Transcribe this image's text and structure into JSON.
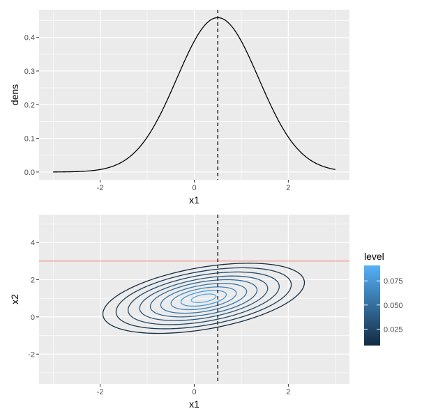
{
  "chart_data": [
    {
      "type": "line",
      "xlabel": "x1",
      "ylabel": "dens",
      "xlim": [
        -3.3,
        3.3
      ],
      "ylim": [
        -0.023,
        0.482
      ],
      "x_ticks": [
        -2,
        0,
        2
      ],
      "x_tick_labels": [
        "-2",
        "0",
        "2"
      ],
      "y_ticks": [
        0.0,
        0.1,
        0.2,
        0.3,
        0.4
      ],
      "y_tick_labels": [
        "0.0",
        "0.1",
        "0.2",
        "0.3",
        "0.4"
      ],
      "grid": true,
      "curve": {
        "mean": 0.5,
        "sd": 0.87,
        "x_range": [
          -3,
          3
        ]
      },
      "vline": {
        "x": 0.5,
        "style": "dashed",
        "color": "#000000"
      }
    },
    {
      "type": "contour",
      "xlabel": "x1",
      "ylabel": "x2",
      "xlim": [
        -3.3,
        3.3
      ],
      "ylim": [
        -3.6,
        5.5
      ],
      "x_ticks": [
        -2,
        0,
        2
      ],
      "x_tick_labels": [
        "-2",
        "0",
        "2"
      ],
      "y_ticks": [
        -2,
        0,
        2,
        4
      ],
      "y_tick_labels": [
        "-2",
        "0",
        "2",
        "4"
      ],
      "grid": true,
      "center": [
        0.2,
        1.0
      ],
      "contours": [
        {
          "a": 2.44,
          "b": 1.48,
          "angle_deg": 37,
          "level": 0.008
        },
        {
          "a": 2.12,
          "b": 1.29,
          "angle_deg": 37,
          "level": 0.017
        },
        {
          "a": 1.83,
          "b": 1.11,
          "angle_deg": 37,
          "level": 0.026
        },
        {
          "a": 1.55,
          "b": 0.94,
          "angle_deg": 37,
          "level": 0.035
        },
        {
          "a": 1.29,
          "b": 0.79,
          "angle_deg": 37,
          "level": 0.044
        },
        {
          "a": 1.04,
          "b": 0.63,
          "angle_deg": 37,
          "level": 0.054
        },
        {
          "a": 0.79,
          "b": 0.48,
          "angle_deg": 37,
          "level": 0.064
        },
        {
          "a": 0.55,
          "b": 0.33,
          "angle_deg": 37,
          "level": 0.075
        },
        {
          "a": 0.3,
          "b": 0.18,
          "angle_deg": 37,
          "level": 0.086
        }
      ],
      "vline": {
        "x": 0.5,
        "style": "dashed",
        "color": "#000000"
      },
      "hline": {
        "y": 3.0,
        "color": "#f8766d"
      },
      "legend": {
        "title": "level",
        "placement": "right",
        "range": [
          0.008,
          0.091
        ],
        "ticks": [
          0.025,
          0.05,
          0.075
        ],
        "tick_labels": [
          "0.025",
          "0.050",
          "0.075"
        ],
        "color_low": "#132b43",
        "color_high": "#56b1f7"
      }
    }
  ]
}
